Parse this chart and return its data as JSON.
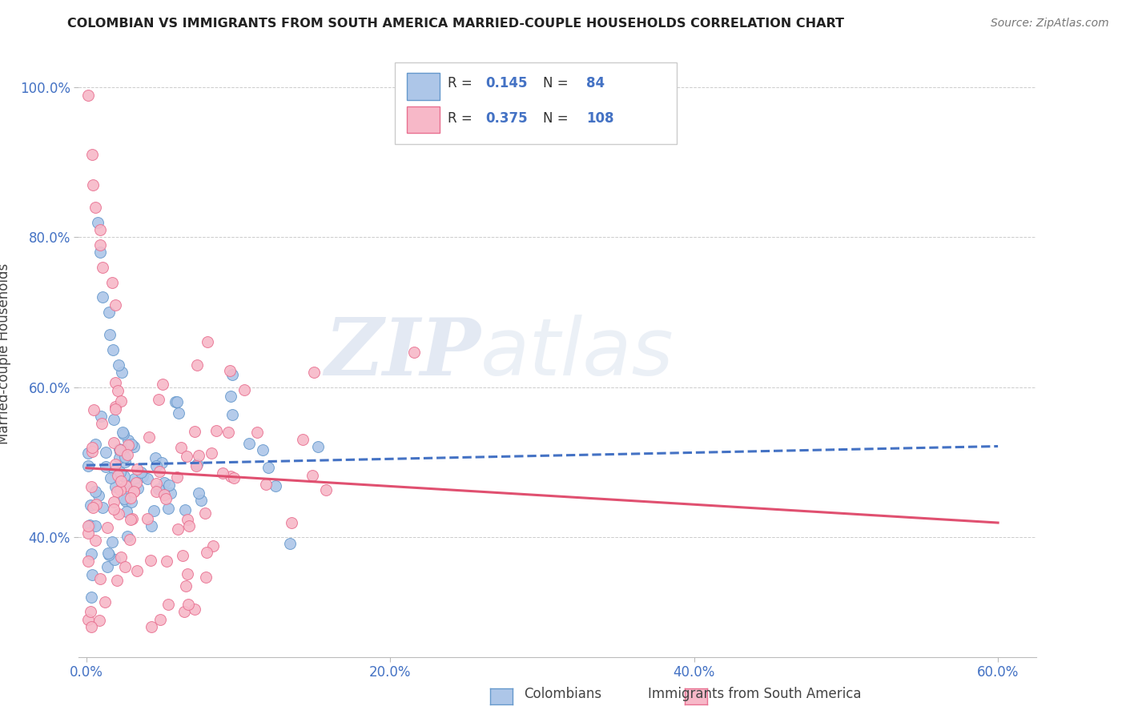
{
  "title": "COLOMBIAN VS IMMIGRANTS FROM SOUTH AMERICA MARRIED-COUPLE HOUSEHOLDS CORRELATION CHART",
  "source": "Source: ZipAtlas.com",
  "ylabel": "Married-couple Households",
  "color_colombian_fill": "#adc6e8",
  "color_colombian_edge": "#6699cc",
  "color_immigrant_fill": "#f7b8c8",
  "color_immigrant_edge": "#e87090",
  "color_trendline_colombian": "#4472c4",
  "color_trendline_immigrant": "#e05070",
  "background_color": "#ffffff",
  "grid_color": "#cccccc",
  "title_color": "#222222",
  "tick_label_color": "#4472c4",
  "watermark": "ZIPAtlas",
  "legend_R1": "0.145",
  "legend_N1": "84",
  "legend_R2": "0.375",
  "legend_N2": "108"
}
